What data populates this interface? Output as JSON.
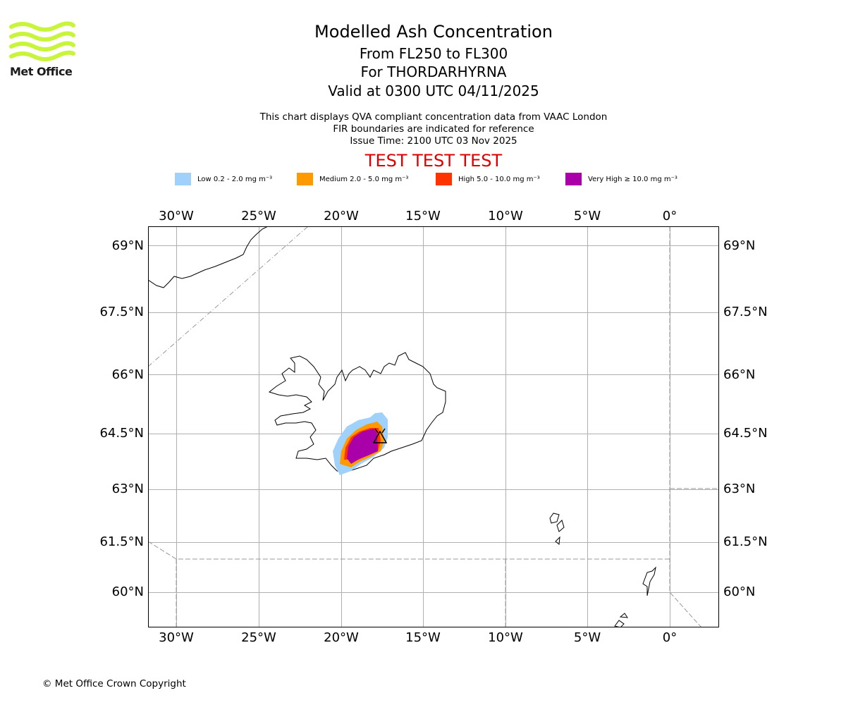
{
  "logo": {
    "text": "Met Office",
    "color": "#c8f53a"
  },
  "title": "Modelled Ash Concentration",
  "subtitle_lines": [
    "From FL250 to FL300",
    "For THORDARHYRNA",
    "Valid at 0300 UTC 04/11/2025"
  ],
  "info_lines": [
    "This chart displays QVA compliant concentration data from VAAC London",
    "FIR boundaries are indicated for reference",
    "Issue Time: 2100 UTC 03 Nov 2025"
  ],
  "test_banner": "TEST TEST TEST",
  "legend": [
    {
      "label": "Low 0.2 - 2.0 mg m⁻³",
      "color": "#a0d1fa"
    },
    {
      "label": "Medium 2.0 - 5.0 mg m⁻³",
      "color": "#ff9900"
    },
    {
      "label": "High 5.0 - 10.0 mg m⁻³",
      "color": "#ff3300"
    },
    {
      "label": "Very High  ≥  10.0 mg m⁻³",
      "color": "#aa00aa"
    }
  ],
  "map": {
    "lon_ticks": [
      "30°W",
      "25°W",
      "20°W",
      "15°W",
      "10°W",
      "5°W",
      "0°"
    ],
    "lat_ticks": [
      "69°N",
      "67.5°N",
      "66°N",
      "64.5°N",
      "63°N",
      "61.5°N",
      "60°N"
    ],
    "volcano_icon": "volcano-symbol-icon"
  },
  "copyright": "© Met Office Crown Copyright"
}
